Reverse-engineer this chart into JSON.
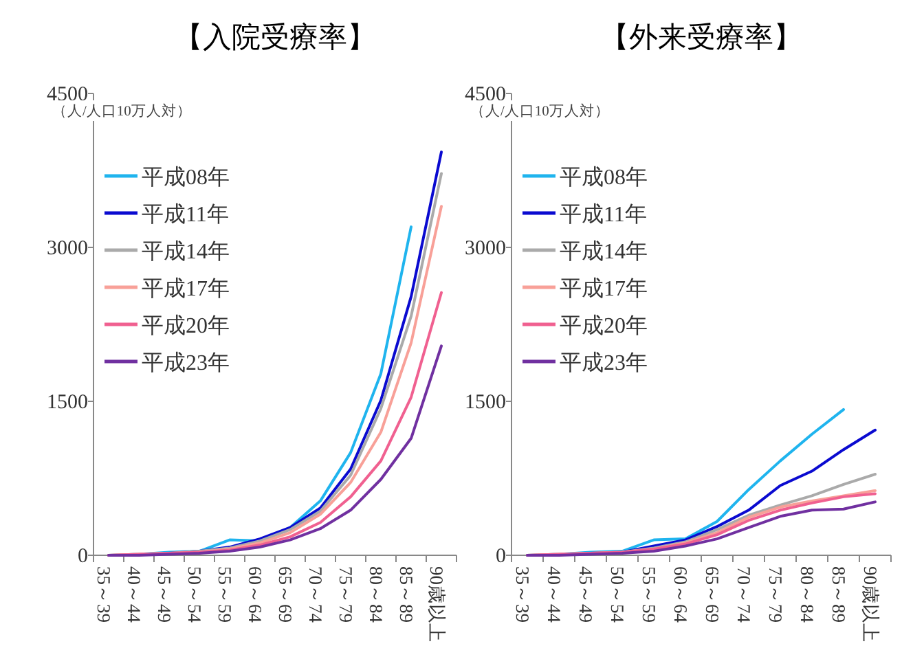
{
  "chart_data": [
    {
      "type": "line",
      "title": "【入院受療率】",
      "ylabel": "（人/人口10万人対）",
      "categories": [
        "35～39",
        "40～44",
        "45～49",
        "50～54",
        "55～59",
        "60～64",
        "65～69",
        "70～74",
        "75～79",
        "80～84",
        "85～89",
        "90歳以上"
      ],
      "ylim": [
        0,
        4500
      ],
      "yticks": [
        0,
        1500,
        3000,
        4500
      ],
      "grid": false,
      "legend": "top left",
      "series": [
        {
          "name": "平成08年",
          "color": "#1fb4ee",
          "values": [
            0,
            10,
            30,
            40,
            150,
            140,
            270,
            530,
            1000,
            1770,
            3200,
            null
          ]
        },
        {
          "name": "平成11年",
          "color": "#0a0ad0",
          "values": [
            null,
            null,
            20,
            40,
            80,
            160,
            270,
            460,
            840,
            1510,
            2520,
            3930
          ]
        },
        {
          "name": "平成14年",
          "color": "#aaaaaa",
          "values": [
            0,
            10,
            20,
            40,
            70,
            140,
            250,
            430,
            780,
            1430,
            2330,
            3720
          ]
        },
        {
          "name": "平成17年",
          "color": "#f8a098",
          "values": [
            0,
            10,
            20,
            30,
            60,
            120,
            220,
            400,
            710,
            1200,
            2070,
            3400
          ]
        },
        {
          "name": "平成20年",
          "color": "#f06090",
          "values": [
            0,
            10,
            20,
            30,
            50,
            100,
            180,
            320,
            570,
            920,
            1540,
            2560
          ]
        },
        {
          "name": "平成23年",
          "color": "#7030a0",
          "values": [
            0,
            0,
            10,
            20,
            40,
            80,
            150,
            260,
            440,
            740,
            1140,
            2040
          ]
        }
      ]
    },
    {
      "type": "line",
      "title": "【外来受療率】",
      "ylabel": "（人/人口10万人対）",
      "categories": [
        "35～39",
        "40～44",
        "45～49",
        "50～54",
        "55～59",
        "60～64",
        "65～69",
        "70～74",
        "75～79",
        "80～84",
        "85～89",
        "90歳以上"
      ],
      "ylim": [
        0,
        4500
      ],
      "yticks": [
        0,
        1500,
        3000,
        4500
      ],
      "grid": false,
      "legend": "top left",
      "series": [
        {
          "name": "平成08年",
          "color": "#1fb4ee",
          "values": [
            0,
            10,
            30,
            40,
            150,
            160,
            330,
            640,
            920,
            1180,
            1420,
            null
          ]
        },
        {
          "name": "平成11年",
          "color": "#0a0ad0",
          "values": [
            null,
            null,
            20,
            30,
            90,
            150,
            280,
            440,
            680,
            820,
            1030,
            1220
          ]
        },
        {
          "name": "平成14年",
          "color": "#aaaaaa",
          "values": [
            0,
            10,
            20,
            30,
            70,
            130,
            250,
            390,
            490,
            580,
            690,
            790
          ]
        },
        {
          "name": "平成17年",
          "color": "#f8a098",
          "values": [
            0,
            10,
            20,
            30,
            60,
            120,
            220,
            370,
            470,
            530,
            580,
            630
          ]
        },
        {
          "name": "平成20年",
          "color": "#f06090",
          "values": [
            0,
            10,
            20,
            30,
            60,
            110,
            200,
            340,
            440,
            510,
            570,
            600
          ]
        },
        {
          "name": "平成23年",
          "color": "#7030a0",
          "values": [
            0,
            0,
            10,
            20,
            40,
            90,
            160,
            270,
            380,
            440,
            450,
            520
          ]
        }
      ]
    }
  ]
}
